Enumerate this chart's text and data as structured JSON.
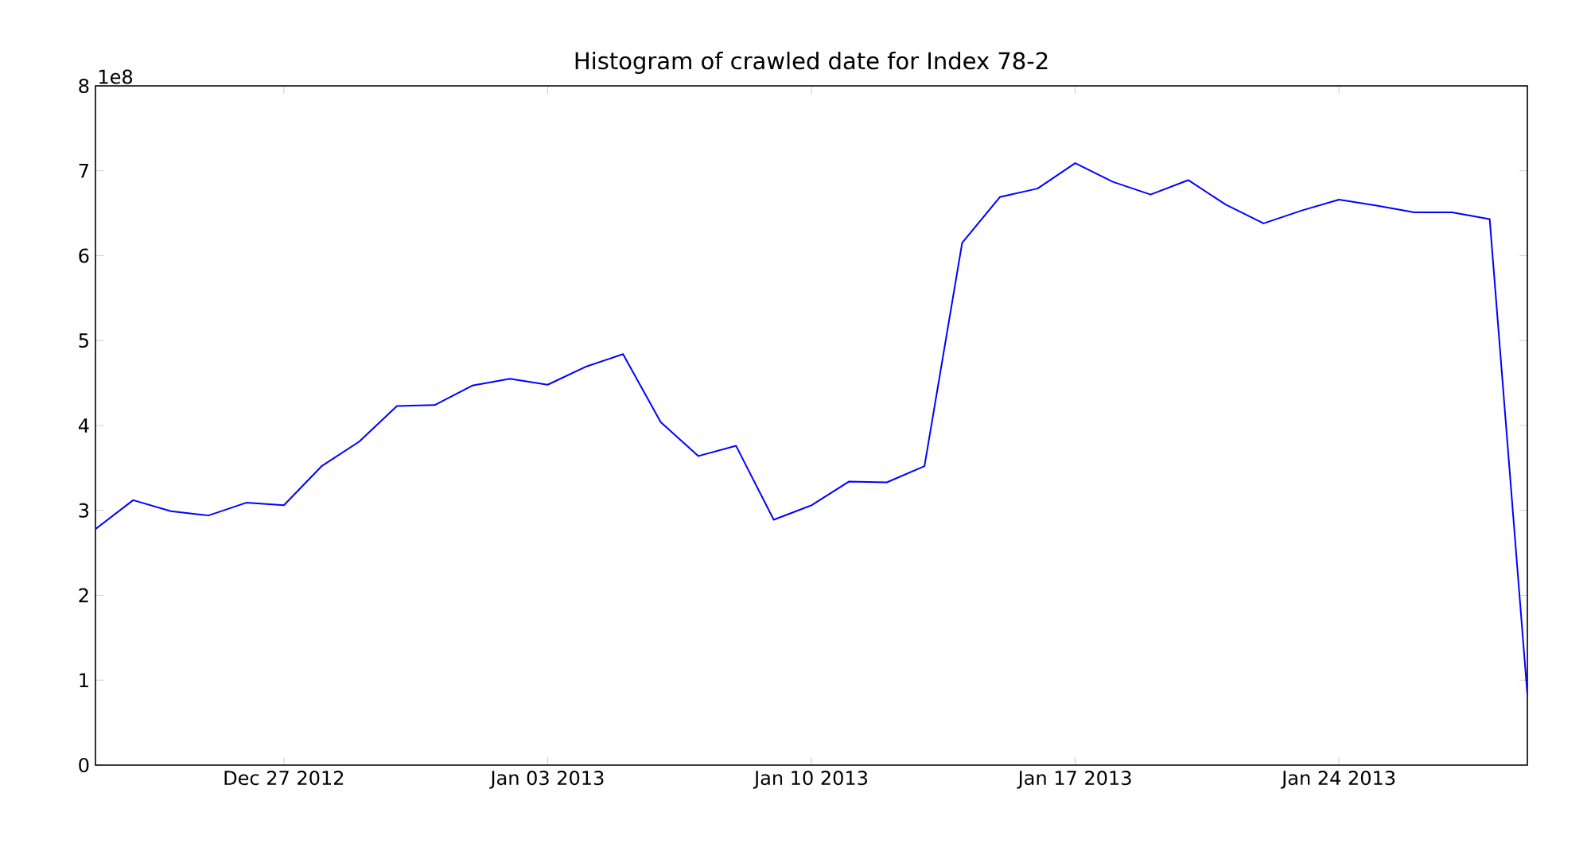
{
  "chart_data": {
    "type": "line",
    "title": "Histogram of crawled date for Index 78-2",
    "annotations": [
      "1e8"
    ],
    "x": [
      "2012-12-22",
      "2012-12-23",
      "2012-12-24",
      "2012-12-25",
      "2012-12-26",
      "2012-12-27",
      "2012-12-28",
      "2012-12-29",
      "2012-12-30",
      "2012-12-31",
      "2013-01-01",
      "2013-01-02",
      "2013-01-03",
      "2013-01-04",
      "2013-01-05",
      "2013-01-06",
      "2013-01-07",
      "2013-01-08",
      "2013-01-09",
      "2013-01-10",
      "2013-01-11",
      "2013-01-12",
      "2013-01-13",
      "2013-01-14",
      "2013-01-15",
      "2013-01-16",
      "2013-01-17",
      "2013-01-18",
      "2013-01-19",
      "2013-01-20",
      "2013-01-21",
      "2013-01-22",
      "2013-01-23",
      "2013-01-24",
      "2013-01-25",
      "2013-01-26",
      "2013-01-27",
      "2013-01-28",
      "2013-01-29"
    ],
    "series": [
      {
        "color": "#0000ff",
        "values": [
          2.78,
          3.12,
          2.99,
          2.94,
          3.09,
          3.06,
          3.52,
          3.81,
          4.23,
          4.24,
          4.47,
          4.55,
          4.48,
          4.69,
          4.84,
          4.04,
          3.64,
          3.76,
          2.89,
          3.06,
          3.34,
          3.33,
          3.52,
          6.15,
          6.69,
          6.79,
          7.09,
          6.87,
          6.72,
          6.89,
          6.6,
          6.38,
          6.53,
          6.66,
          6.59,
          6.51,
          6.51,
          6.43,
          0.83
        ]
      }
    ],
    "xlim": [
      "2012-12-22",
      "2013-01-29"
    ],
    "xticks": [
      {
        "value": "2012-12-27",
        "label": "Dec 27 2012"
      },
      {
        "value": "2013-01-03",
        "label": "Jan 03 2013"
      },
      {
        "value": "2013-01-10",
        "label": "Jan 10 2013"
      },
      {
        "value": "2013-01-17",
        "label": "Jan 17 2013"
      },
      {
        "value": "2013-01-24",
        "label": "Jan 24 2013"
      }
    ],
    "ylim": [
      0,
      8
    ],
    "yticks": [
      0,
      1,
      2,
      3,
      4,
      5,
      6,
      7,
      8
    ]
  }
}
